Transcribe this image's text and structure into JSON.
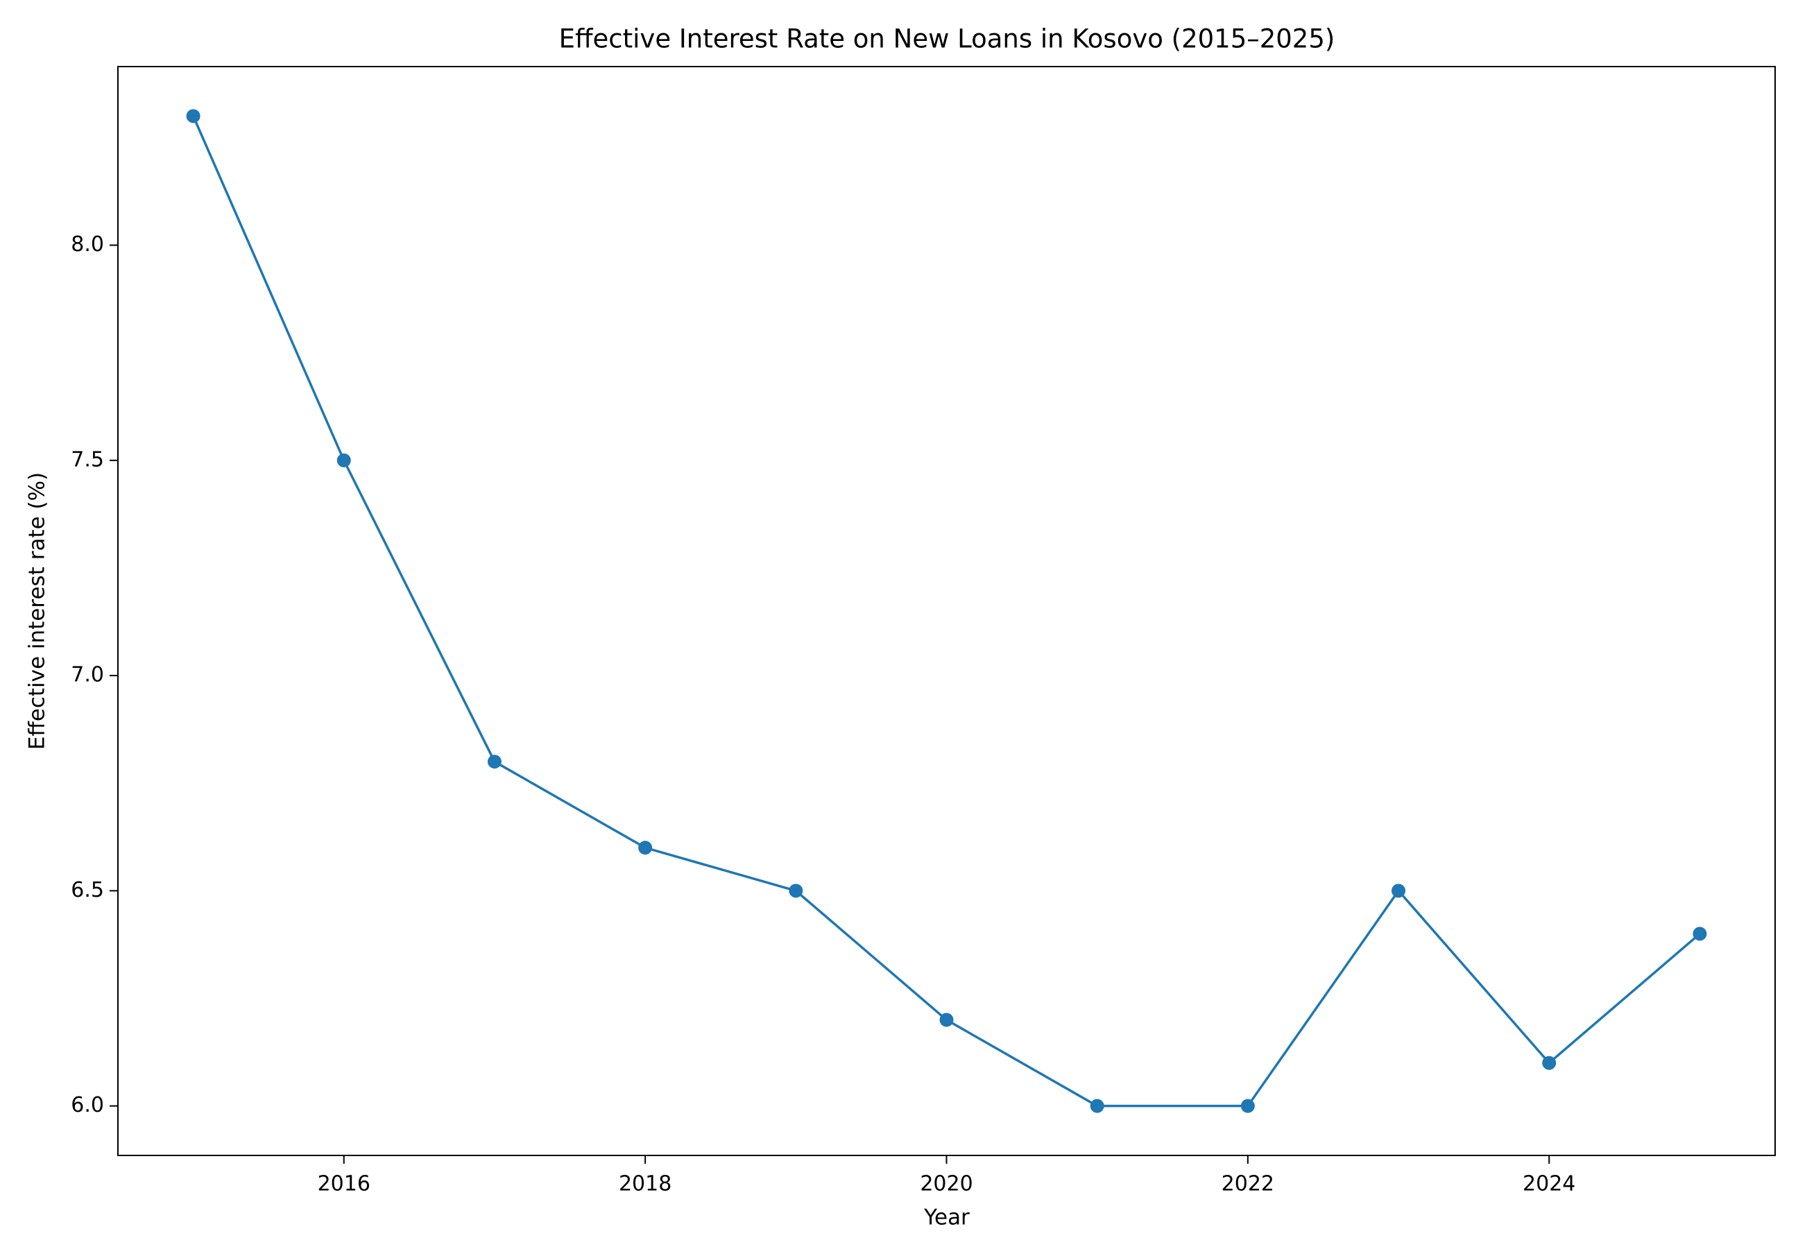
{
  "chart_data": {
    "type": "line",
    "title": "Effective Interest Rate on New Loans in Kosovo (2015–2025)",
    "x_label": "Year",
    "y_label": "Effective interest rate (%)",
    "x": [
      2015,
      2016,
      2017,
      2018,
      2019,
      2020,
      2021,
      2022,
      2023,
      2024,
      2025
    ],
    "values": [
      8.3,
      7.5,
      6.8,
      6.6,
      6.5,
      6.2,
      6.0,
      6.0,
      6.5,
      6.1,
      6.4
    ],
    "color": "#1f77b4",
    "marker": "circle",
    "grid": false,
    "xlim": [
      2014.5,
      2025.5
    ],
    "xticks": [
      2016,
      2018,
      2020,
      2022,
      2024
    ],
    "ylim": [
      5.885,
      8.415
    ],
    "yticks": [
      {
        "value": 6,
        "label": "6.0"
      },
      6.5,
      {
        "value": 7,
        "label": "7.0"
      },
      7.5,
      {
        "value": 8,
        "label": "8.0"
      }
    ]
  }
}
